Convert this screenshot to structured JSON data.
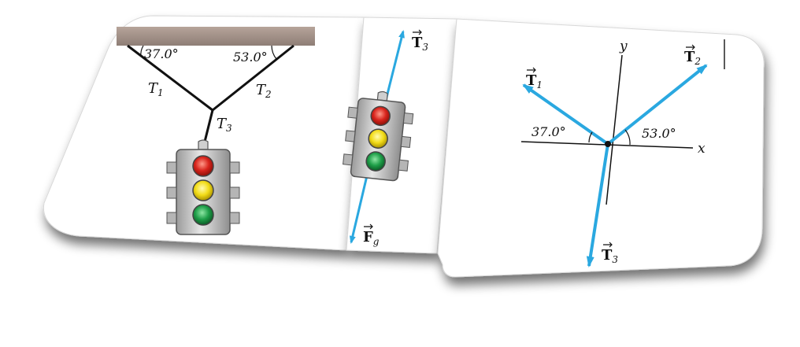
{
  "panel_a": {
    "angle_left": "37.0°",
    "angle_right": "53.0°",
    "label_t1": "T",
    "label_t1_sub": "1",
    "label_t2": "T",
    "label_t2_sub": "2",
    "label_t3": "T",
    "label_t3_sub": "3"
  },
  "panel_b": {
    "vector_up": "T",
    "vector_up_sub": "3",
    "vector_down": "F",
    "vector_down_sub": "g"
  },
  "panel_c": {
    "axis_x": "x",
    "axis_y": "y",
    "vector_t1": "T",
    "vector_t1_sub": "1",
    "vector_t2": "T",
    "vector_t2_sub": "2",
    "vector_t3": "T",
    "vector_t3_sub": "3",
    "angle_left": "37.0°",
    "angle_right": "53.0°"
  },
  "colors": {
    "arrow": "#2aa8e0",
    "ceiling": "#a09088",
    "signal_red": "#d8241c",
    "signal_yellow": "#f2dc18",
    "signal_green": "#1e9e48",
    "signal_body": "#c9c9c9"
  }
}
